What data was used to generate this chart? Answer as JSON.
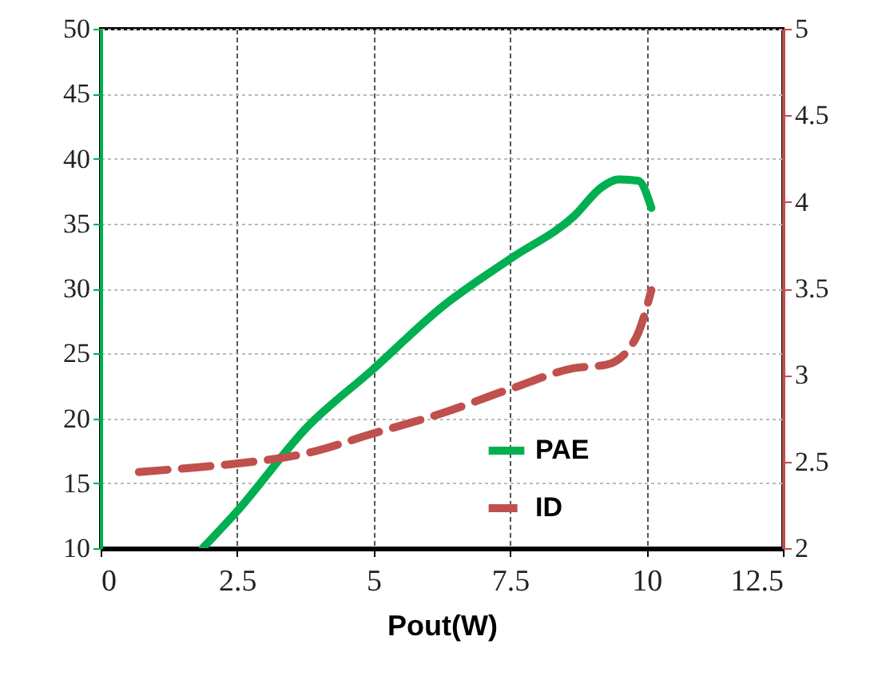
{
  "chart_data": {
    "type": "line",
    "xlabel": "Pout(W)",
    "xlim": [
      0,
      12.5
    ],
    "xticks": [
      0,
      2.5,
      5,
      7.5,
      10,
      12.5
    ],
    "ylim": [
      10,
      50
    ],
    "yticks": [
      10,
      15,
      20,
      25,
      30,
      35,
      40,
      45,
      50
    ],
    "y2lim": [
      2,
      5
    ],
    "y2ticks": [
      2,
      2.5,
      3,
      3.5,
      4,
      4.5,
      5
    ],
    "grid": true,
    "legend": "bottom right",
    "series": [
      {
        "name": "PAE",
        "color": "#00b050",
        "line_style": "solid",
        "x": [
          1.87,
          2.49,
          3.8,
          4.97,
          6.26,
          7.51,
          8.68,
          9.18,
          9.5,
          9.85,
          10.09
        ],
        "values": [
          10,
          12.8,
          19.4,
          23.7,
          28.6,
          32.3,
          35.6,
          37.8,
          38.4,
          38.3,
          36.2
        ]
      },
      {
        "name": "ID",
        "color": "#c0504d",
        "line_style": "dashed",
        "axis": "y2",
        "x": [
          0.7,
          1.87,
          2.54,
          3.8,
          4.97,
          6.26,
          7.51,
          8.68,
          9.27,
          9.8,
          10.09
        ],
        "values": [
          2.44,
          2.47,
          2.49,
          2.55,
          2.66,
          2.78,
          2.92,
          3.04,
          3.06,
          3.21,
          3.49
        ]
      }
    ]
  }
}
